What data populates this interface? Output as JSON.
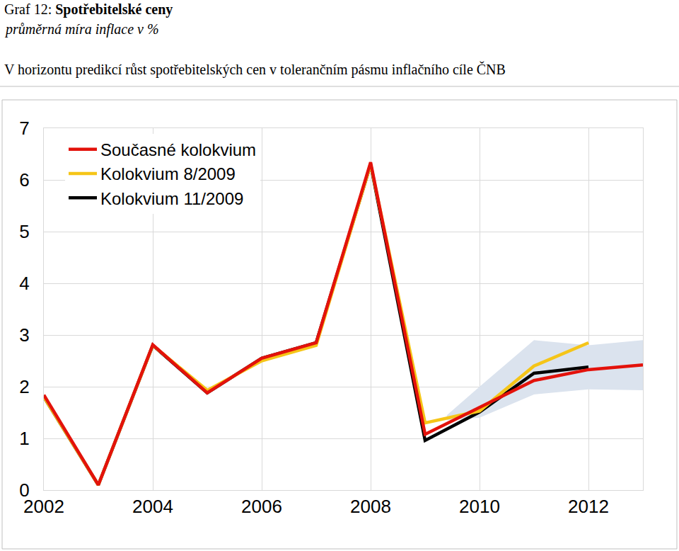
{
  "chart_data": {
    "type": "line",
    "title": "Graf 12: Spotřebitelské ceny",
    "subtitle": "průměrná míra inflace v %",
    "caption": "V horizontu predikcí růst spotřebitelských cen v tolerančním pásmu inflačního cíle ČNB",
    "x": [
      2002,
      2003,
      2004,
      2005,
      2006,
      2007,
      2008,
      2009,
      2010,
      2011,
      2012,
      2013
    ],
    "series": [
      {
        "name": "Současné kolokvium",
        "color": "#e3120b",
        "values": [
          1.84,
          0.1,
          2.81,
          1.88,
          2.55,
          2.85,
          6.34,
          1.08,
          1.6,
          2.12,
          2.33,
          2.42
        ]
      },
      {
        "name": "Kolokvium 8/2009",
        "color": "#f5c518",
        "values": [
          1.8,
          0.1,
          2.8,
          1.93,
          2.5,
          2.8,
          6.3,
          1.3,
          1.53,
          2.4,
          2.85,
          null
        ]
      },
      {
        "name": "Kolokvium 11/2009",
        "color": "#000000",
        "values": [
          1.8,
          0.1,
          2.8,
          1.88,
          2.55,
          2.85,
          6.3,
          0.96,
          1.51,
          2.26,
          2.38,
          null
        ]
      }
    ],
    "band": {
      "color": "#dbe3ee",
      "x": [
        2009.4,
        2010,
        2011,
        2012,
        2013
      ],
      "lower": [
        1.35,
        1.4,
        1.85,
        1.95,
        1.93
      ],
      "upper": [
        1.45,
        2.0,
        2.9,
        2.8,
        2.9
      ]
    },
    "xlim": [
      2002,
      2013
    ],
    "xticks": [
      2002,
      2004,
      2006,
      2008,
      2010,
      2012
    ],
    "ylim": [
      0,
      7
    ],
    "yticks": [
      0,
      1,
      2,
      3,
      4,
      5,
      6,
      7
    ],
    "grid": true,
    "legend": "upper left"
  }
}
